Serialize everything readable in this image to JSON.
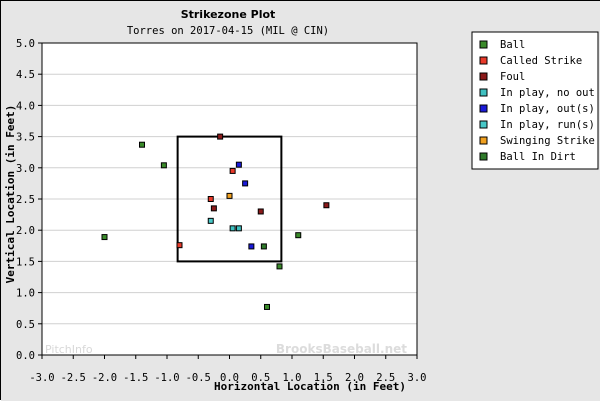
{
  "chart_data": {
    "type": "scatter",
    "title": "Strikezone Plot",
    "subtitle": "Torres on 2017-04-15 (MIL @ CIN)",
    "xlabel": "Horizontal Location (in Feet)",
    "ylabel": "Vertical Location (in Feet)",
    "xlim": [
      -3.0,
      3.0
    ],
    "ylim": [
      0.0,
      5.0
    ],
    "x_ticks": [
      "-3.0",
      "-2.5",
      "-2.0",
      "-1.5",
      "-1.0",
      "-0.5",
      "0.0",
      "0.5",
      "1.0",
      "1.5",
      "2.0",
      "2.5",
      "3.0"
    ],
    "y_ticks": [
      "0.0",
      "0.5",
      "1.0",
      "1.5",
      "2.0",
      "2.5",
      "3.0",
      "3.5",
      "4.0",
      "4.5",
      "5.0"
    ],
    "grid": true,
    "legend_position": "right",
    "strike_zone": {
      "x": [
        -0.83,
        0.83
      ],
      "y": [
        1.5,
        3.5
      ]
    },
    "watermarks": [
      "PitchInfo",
      "BrooksBaseball.net"
    ],
    "series": [
      {
        "name": "Ball",
        "color": "#3a8a2a",
        "points": [
          [
            -1.4,
            3.37
          ],
          [
            -1.05,
            3.04
          ],
          [
            -2.0,
            1.89
          ],
          [
            1.1,
            1.92
          ],
          [
            0.8,
            1.42
          ],
          [
            0.6,
            0.77
          ]
        ]
      },
      {
        "name": "Called Strike",
        "color": "#e83a2a",
        "points": [
          [
            -0.8,
            1.76
          ],
          [
            -0.3,
            2.5
          ],
          [
            0.05,
            2.95
          ]
        ]
      },
      {
        "name": "Foul",
        "color": "#8b1a1a",
        "points": [
          [
            -0.15,
            3.5
          ],
          [
            -0.25,
            2.35
          ],
          [
            0.5,
            2.3
          ],
          [
            1.55,
            2.4
          ]
        ]
      },
      {
        "name": "In play, no out",
        "color": "#3fc0c0",
        "points": [
          [
            0.05,
            2.03
          ],
          [
            0.15,
            2.03
          ]
        ]
      },
      {
        "name": "In play, out(s)",
        "color": "#1a1ad8",
        "points": [
          [
            0.15,
            3.05
          ],
          [
            0.25,
            2.75
          ],
          [
            0.35,
            1.74
          ]
        ]
      },
      {
        "name": "In play, run(s)",
        "color": "#48c8c8",
        "points": [
          [
            -0.3,
            2.15
          ]
        ]
      },
      {
        "name": "Swinging Strike",
        "color": "#f0a020",
        "points": [
          [
            0.0,
            2.55
          ]
        ]
      },
      {
        "name": "Ball In Dirt",
        "color": "#2f7a2a",
        "points": [
          [
            0.55,
            1.74
          ]
        ]
      }
    ]
  }
}
